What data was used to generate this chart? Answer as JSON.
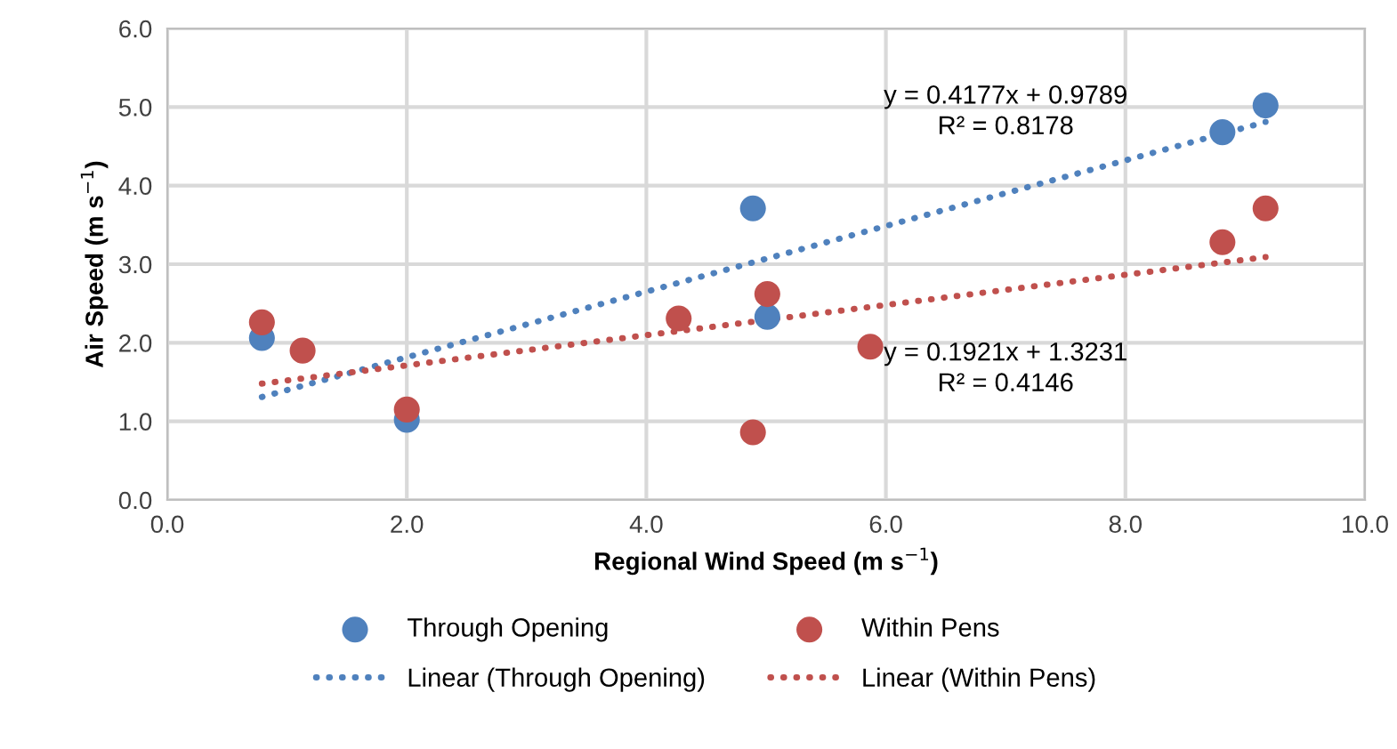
{
  "chart_data": {
    "type": "scatter",
    "xlabel": "Regional Wind Speed (m s$^{−1}$)",
    "ylabel": "Air Speed (m s$^{−1}$)",
    "series": [
      {
        "name": "Through Opening",
        "marker": "circle",
        "color": "#4f81bd",
        "x": [
          0.79,
          2.0,
          4.89,
          5.01,
          8.81,
          9.17
        ],
        "values": [
          2.06,
          1.02,
          3.71,
          2.33,
          4.68,
          5.02
        ]
      },
      {
        "name": "Within Pens",
        "marker": "circle",
        "color": "#c0504d",
        "x": [
          0.79,
          1.13,
          2.0,
          4.27,
          4.89,
          5.01,
          5.87,
          8.81,
          9.17
        ],
        "values": [
          2.26,
          1.9,
          1.15,
          2.31,
          0.86,
          2.62,
          1.95,
          3.28,
          3.71
        ]
      },
      {
        "name": "Linear (Through Opening)",
        "type": "line",
        "marker": "none",
        "line_style": "dotted",
        "color": "#4f81bd",
        "x": [
          0.79,
          9.17
        ],
        "values": [
          1.31,
          4.81
        ]
      },
      {
        "name": "Linear (Within Pens)",
        "type": "line",
        "marker": "none",
        "line_style": "dotted",
        "color": "#c0504d",
        "x": [
          0.79,
          9.17
        ],
        "values": [
          1.48,
          3.09
        ]
      }
    ],
    "annotations": [
      "y = 0.4177x + 0.9789",
      "R² = 0.8178",
      "y = 0.1921x + 1.3231",
      "R² = 0.4146"
    ],
    "xlim": [
      0,
      10
    ],
    "ylim": [
      0,
      6
    ],
    "xticks": [
      {
        "value": 0,
        "label": "0.0"
      },
      {
        "value": 2,
        "label": "2.0"
      },
      {
        "value": 4,
        "label": "4.0"
      },
      {
        "value": 6,
        "label": "6.0"
      },
      {
        "value": 8,
        "label": "8.0"
      },
      {
        "value": 10,
        "label": "10.0"
      }
    ],
    "yticks": [
      {
        "value": 0,
        "label": "0.0"
      },
      {
        "value": 1,
        "label": "1.0"
      },
      {
        "value": 2,
        "label": "2.0"
      },
      {
        "value": 3,
        "label": "3.0"
      },
      {
        "value": 4,
        "label": "4.0"
      },
      {
        "value": 5,
        "label": "5.0"
      },
      {
        "value": 6,
        "label": "6.0"
      }
    ],
    "grid": true,
    "legend": "bottom"
  }
}
